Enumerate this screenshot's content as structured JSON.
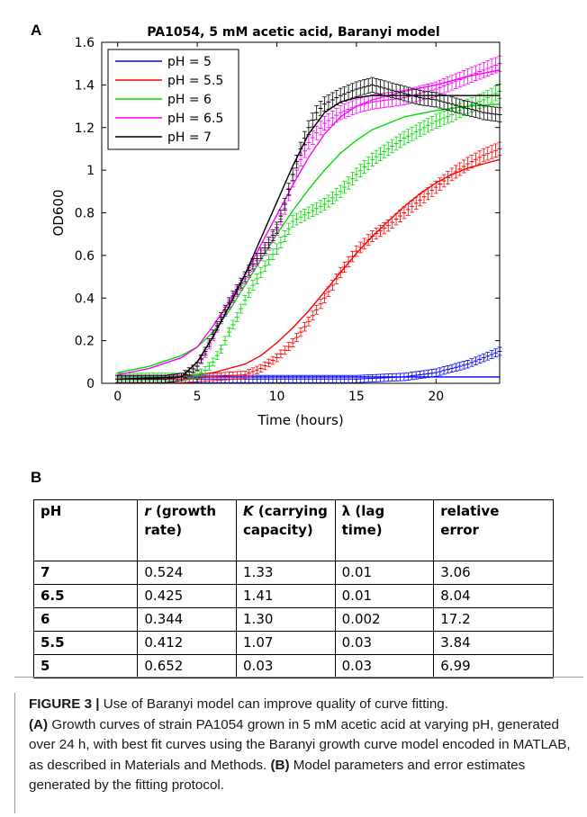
{
  "panel_a_label": "A",
  "panel_b_label": "B",
  "chart_data": {
    "type": "line",
    "title": "PA1054, 5 mM acetic acid, Baranyi model",
    "xlabel": "Time (hours)",
    "ylabel": "OD600",
    "xlim": [
      -1,
      24
    ],
    "ylim": [
      0,
      1.6
    ],
    "xticks": [
      0,
      5,
      10,
      15,
      20
    ],
    "xtick_labels": [
      "0",
      "5",
      "10",
      "15",
      "20"
    ],
    "yticks": [
      0,
      0.2,
      0.4,
      0.6,
      0.8,
      1.0,
      1.2,
      1.4,
      1.6
    ],
    "ytick_labels": [
      "0",
      "0.2",
      "0.4",
      "0.6",
      "0.8",
      "1",
      "1.2",
      "1.4",
      "1.6"
    ],
    "grid": false,
    "legend_position": "top-left",
    "series": [
      {
        "name": "pH = 5",
        "color": "#0000ff",
        "x": [
          0,
          3,
          6,
          9,
          12,
          15,
          18,
          19,
          20,
          21,
          22,
          23,
          24
        ],
        "y": [
          0.02,
          0.02,
          0.02,
          0.02,
          0.02,
          0.02,
          0.03,
          0.04,
          0.05,
          0.07,
          0.09,
          0.12,
          0.15
        ],
        "fit_x": [
          0,
          24
        ],
        "fit_y": [
          0.03,
          0.03
        ]
      },
      {
        "name": "pH = 5.5",
        "color": "#ff0000",
        "x": [
          0,
          4,
          6,
          8,
          9,
          10,
          11,
          12,
          13,
          14,
          15,
          16,
          17,
          18,
          19,
          20,
          21,
          22,
          23,
          24
        ],
        "y": [
          0.02,
          0.02,
          0.03,
          0.04,
          0.07,
          0.12,
          0.19,
          0.29,
          0.4,
          0.52,
          0.62,
          0.69,
          0.74,
          0.8,
          0.86,
          0.92,
          0.98,
          1.03,
          1.07,
          1.1
        ],
        "fit_x": [
          0,
          4,
          6,
          8,
          9,
          10,
          11,
          12,
          13,
          14,
          15,
          16,
          17,
          18,
          19,
          20,
          21,
          22,
          23,
          24
        ],
        "fit_y": [
          0.02,
          0.03,
          0.05,
          0.09,
          0.13,
          0.19,
          0.26,
          0.34,
          0.43,
          0.52,
          0.61,
          0.69,
          0.76,
          0.83,
          0.89,
          0.94,
          0.98,
          1.01,
          1.03,
          1.05
        ]
      },
      {
        "name": "pH = 6",
        "color": "#00dd00",
        "x": [
          0,
          3,
          4,
          5,
          5.5,
          6,
          6.5,
          7,
          7.5,
          8,
          8.5,
          9,
          9.5,
          10,
          10.5,
          11,
          12,
          13,
          14,
          15,
          16,
          17,
          18,
          19,
          20,
          21,
          22,
          23,
          24
        ],
        "y": [
          0.03,
          0.03,
          0.03,
          0.04,
          0.06,
          0.1,
          0.16,
          0.24,
          0.31,
          0.39,
          0.46,
          0.52,
          0.58,
          0.63,
          0.69,
          0.76,
          0.8,
          0.84,
          0.9,
          0.98,
          1.05,
          1.1,
          1.15,
          1.19,
          1.23,
          1.26,
          1.3,
          1.33,
          1.37
        ],
        "fit_x": [
          0,
          2,
          4,
          5,
          6,
          7,
          8,
          9,
          10,
          11,
          12,
          13,
          14,
          15,
          16,
          18,
          20,
          22,
          24
        ],
        "fit_y": [
          0.05,
          0.08,
          0.13,
          0.17,
          0.24,
          0.34,
          0.46,
          0.58,
          0.7,
          0.81,
          0.91,
          1.0,
          1.08,
          1.14,
          1.19,
          1.25,
          1.28,
          1.3,
          1.31
        ]
      },
      {
        "name": "pH = 6.5",
        "color": "#ff00ff",
        "x": [
          0,
          3,
          4,
          5,
          5.5,
          6,
          6.5,
          7,
          7.5,
          8,
          8.5,
          9,
          9.5,
          10,
          10.5,
          11,
          11.5,
          12,
          13,
          14,
          15,
          16,
          17,
          18,
          19,
          20,
          21,
          22,
          23,
          24
        ],
        "y": [
          0.02,
          0.02,
          0.03,
          0.08,
          0.14,
          0.22,
          0.3,
          0.37,
          0.43,
          0.49,
          0.55,
          0.6,
          0.65,
          0.72,
          0.82,
          0.95,
          1.05,
          1.13,
          1.22,
          1.27,
          1.3,
          1.32,
          1.33,
          1.34,
          1.36,
          1.38,
          1.41,
          1.44,
          1.47,
          1.5
        ],
        "fit_x": [
          0,
          2,
          4,
          5,
          6,
          7,
          8,
          9,
          10,
          11,
          12,
          13,
          14,
          15,
          16,
          18,
          20,
          22,
          24
        ],
        "fit_y": [
          0.04,
          0.07,
          0.12,
          0.17,
          0.27,
          0.38,
          0.51,
          0.65,
          0.79,
          0.93,
          1.06,
          1.17,
          1.25,
          1.3,
          1.33,
          1.37,
          1.4,
          1.44,
          1.47
        ]
      },
      {
        "name": "pH = 7",
        "color": "#000000",
        "x": [
          0,
          3,
          4,
          5,
          5.5,
          6,
          6.5,
          7,
          7.5,
          8,
          8.5,
          9,
          9.5,
          10,
          10.5,
          11,
          11.5,
          12,
          12.5,
          13,
          14,
          15,
          16,
          17,
          18,
          19,
          20,
          21,
          22,
          23,
          24
        ],
        "y": [
          0.02,
          0.02,
          0.03,
          0.08,
          0.15,
          0.23,
          0.31,
          0.38,
          0.44,
          0.5,
          0.56,
          0.61,
          0.66,
          0.73,
          0.84,
          0.98,
          1.1,
          1.2,
          1.27,
          1.31,
          1.35,
          1.38,
          1.4,
          1.38,
          1.36,
          1.34,
          1.33,
          1.31,
          1.29,
          1.27,
          1.26
        ],
        "fit_x": [
          0,
          4,
          5,
          6,
          7,
          8,
          9,
          10,
          11,
          12,
          13,
          14,
          15,
          16,
          18,
          20,
          22,
          24
        ],
        "fit_y": [
          0.02,
          0.03,
          0.1,
          0.22,
          0.36,
          0.51,
          0.68,
          0.85,
          1.02,
          1.17,
          1.27,
          1.32,
          1.34,
          1.35,
          1.35,
          1.35,
          1.35,
          1.35
        ]
      }
    ]
  },
  "table": {
    "headers": [
      {
        "l1_plain": "pH",
        "l1_italic": "",
        "l1_rest": "",
        "l2": ""
      },
      {
        "l1_plain": "",
        "l1_italic": "r",
        "l1_rest": " (growth",
        "l2": "rate)"
      },
      {
        "l1_plain": "",
        "l1_italic": "K",
        "l1_rest": " (carrying",
        "l2": "capacity)"
      },
      {
        "l1_plain": "λ (lag time)",
        "l1_italic": "",
        "l1_rest": "",
        "l2": ""
      },
      {
        "l1_plain": "relative",
        "l1_italic": "",
        "l1_rest": "",
        "l2": "error"
      }
    ],
    "rows": [
      [
        "7",
        "0.524",
        "1.33",
        "0.01",
        "3.06"
      ],
      [
        "6.5",
        "0.425",
        "1.41",
        "0.01",
        "8.04"
      ],
      [
        "6",
        "0.344",
        "1.30",
        "0.002",
        "17.2"
      ],
      [
        "5.5",
        "0.412",
        "1.07",
        "0.03",
        "3.84"
      ],
      [
        "5",
        "0.652",
        "0.03",
        "0.03",
        "6.99"
      ]
    ]
  },
  "caption": {
    "fig_label": "FIGURE 3 |",
    "fig_title": " Use of Baranyi model can improve quality of curve fitting.",
    "a_label": "(A)",
    "a_text": " Growth curves of strain PA1054 grown in 5 mM acetic acid at varying pH, generated over 24 h, with best fit curves using the Baranyi growth curve model encoded in MATLAB, as described in Materials and Methods. ",
    "b_label": "(B)",
    "b_text": " Model parameters and error estimates generated by the fitting protocol."
  }
}
